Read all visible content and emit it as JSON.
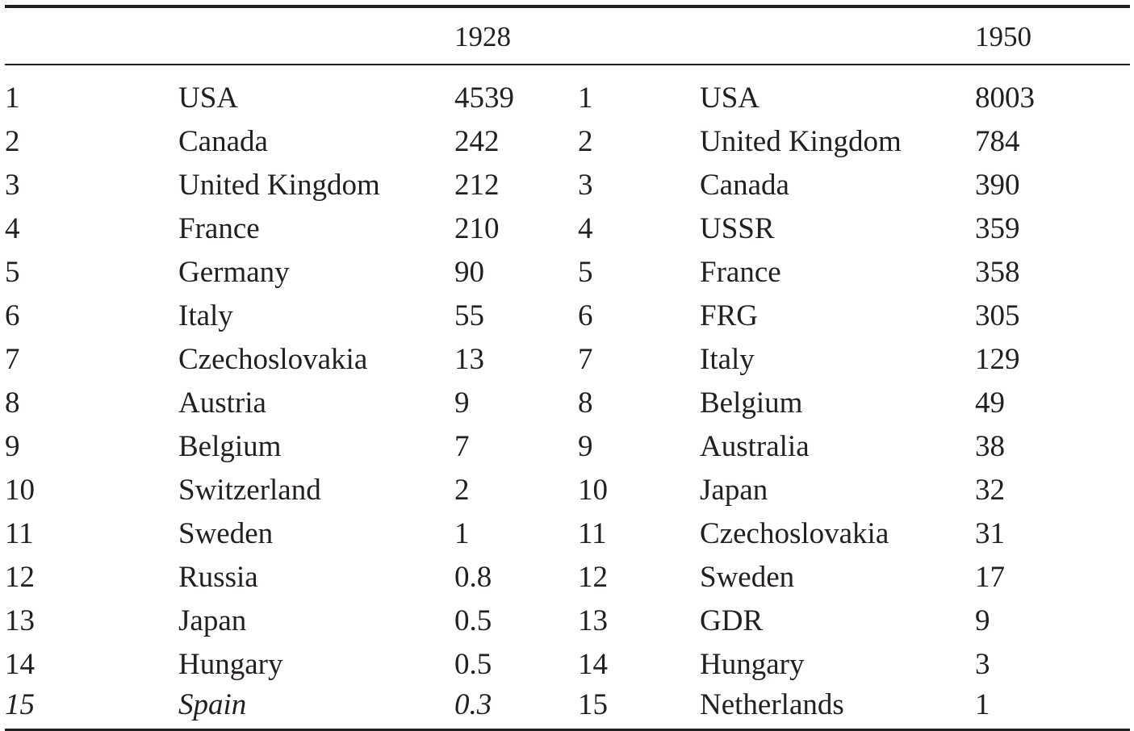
{
  "header": {
    "year_left": "1928",
    "year_right": "1950"
  },
  "rows": [
    {
      "rank_1928": "1",
      "country_1928": "USA",
      "value_1928": "4539",
      "rank_1950": "1",
      "country_1950": "USA",
      "value_1950": "8003"
    },
    {
      "rank_1928": "2",
      "country_1928": "Canada",
      "value_1928": "242",
      "rank_1950": "2",
      "country_1950": "United Kingdom",
      "value_1950": "784"
    },
    {
      "rank_1928": "3",
      "country_1928": "United Kingdom",
      "value_1928": "212",
      "rank_1950": "3",
      "country_1950": "Canada",
      "value_1950": "390"
    },
    {
      "rank_1928": "4",
      "country_1928": "France",
      "value_1928": "210",
      "rank_1950": "4",
      "country_1950": "USSR",
      "value_1950": "359"
    },
    {
      "rank_1928": "5",
      "country_1928": "Germany",
      "value_1928": "90",
      "rank_1950": "5",
      "country_1950": "France",
      "value_1950": "358"
    },
    {
      "rank_1928": "6",
      "country_1928": "Italy",
      "value_1928": "55",
      "rank_1950": "6",
      "country_1950": "FRG",
      "value_1950": "305"
    },
    {
      "rank_1928": "7",
      "country_1928": "Czechoslovakia",
      "value_1928": "13",
      "rank_1950": "7",
      "country_1950": "Italy",
      "value_1950": "129"
    },
    {
      "rank_1928": "8",
      "country_1928": "Austria",
      "value_1928": "9",
      "rank_1950": "8",
      "country_1950": "Belgium",
      "value_1950": "49"
    },
    {
      "rank_1928": "9",
      "country_1928": "Belgium",
      "value_1928": "7",
      "rank_1950": "9",
      "country_1950": "Australia",
      "value_1950": "38"
    },
    {
      "rank_1928": "10",
      "country_1928": "Switzerland",
      "value_1928": "2",
      "rank_1950": "10",
      "country_1950": "Japan",
      "value_1950": "32"
    },
    {
      "rank_1928": "11",
      "country_1928": "Sweden",
      "value_1928": "1",
      "rank_1950": "11",
      "country_1950": "Czechoslovakia",
      "value_1950": "31"
    },
    {
      "rank_1928": "12",
      "country_1928": "Russia",
      "value_1928": "0.8",
      "rank_1950": "12",
      "country_1950": "Sweden",
      "value_1950": "17"
    },
    {
      "rank_1928": "13",
      "country_1928": "Japan",
      "value_1928": "0.5",
      "rank_1950": "13",
      "country_1950": "GDR",
      "value_1950": "9"
    },
    {
      "rank_1928": "14",
      "country_1928": "Hungary",
      "value_1928": "0.5",
      "rank_1950": "14",
      "country_1950": "Hungary",
      "value_1950": "3"
    },
    {
      "rank_1928": "15",
      "country_1928": "Spain",
      "value_1928": "0.3",
      "rank_1950": "15",
      "country_1950": "Netherlands",
      "value_1950": "1",
      "italic_1928": true
    }
  ]
}
